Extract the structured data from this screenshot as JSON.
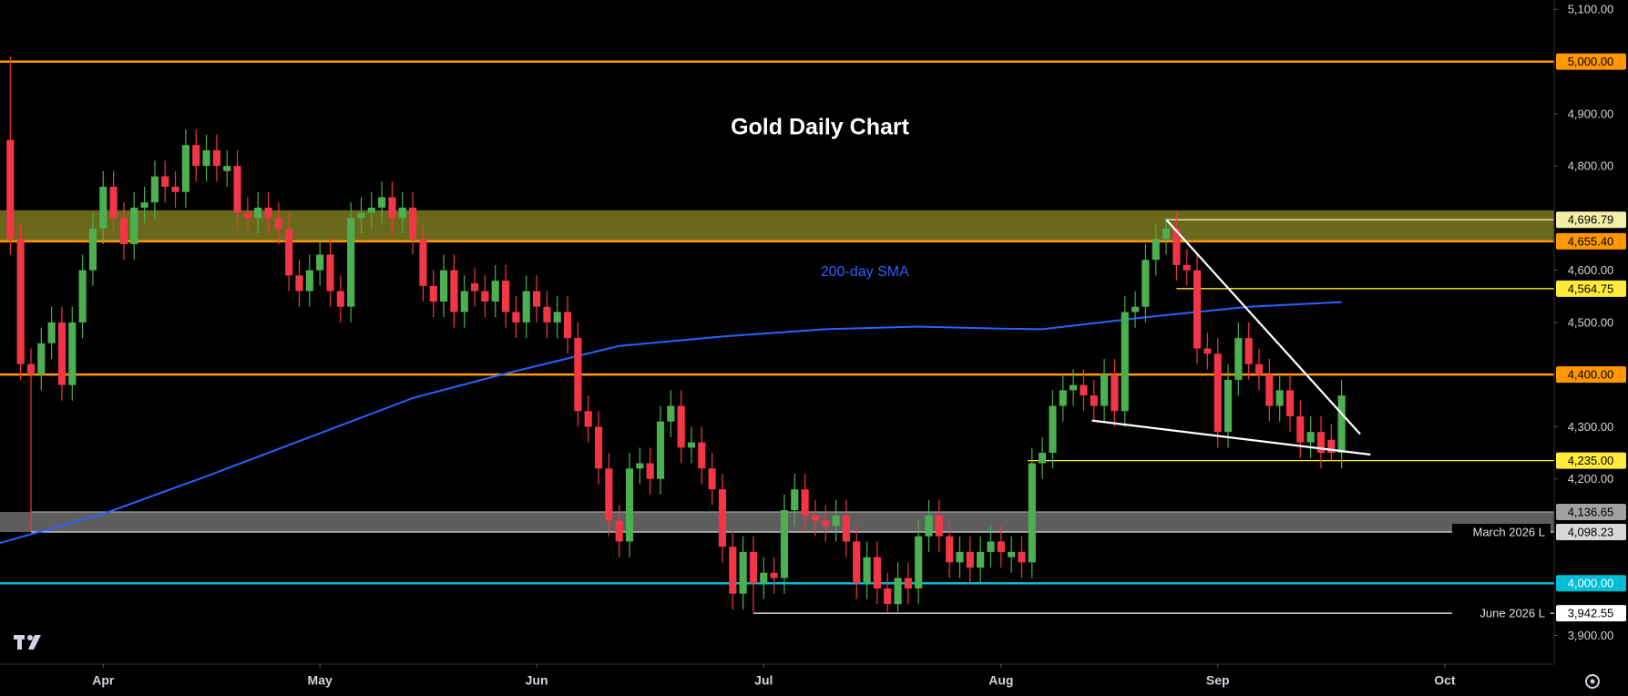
{
  "chart_data": {
    "type": "candlestick",
    "title": "Gold Daily Chart",
    "up_color": "#4caf50",
    "down_color": "#f23645",
    "open": [
      4850,
      4660,
      4420,
      4400,
      4460,
      4500,
      4380,
      4500,
      4600,
      4680,
      4760,
      4700,
      4650,
      4720,
      4730,
      4780,
      4760,
      4750,
      4840,
      4800,
      4830,
      4790,
      4800,
      4710,
      4700,
      4720,
      4700,
      4680,
      4590,
      4560,
      4600,
      4630,
      4560,
      4530,
      4700,
      4710,
      4720,
      4740,
      4700,
      4720,
      4660,
      4570,
      4540,
      4600,
      4520,
      4575,
      4560,
      4540,
      4580,
      4520,
      4500,
      4560,
      4530,
      4500,
      4520,
      4470,
      4330,
      4300,
      4220,
      4120,
      4080,
      4220,
      4230,
      4200,
      4310,
      4340,
      4260,
      4270,
      4220,
      4180,
      4070,
      3980,
      4060,
      4000,
      4020,
      4010,
      4140,
      4180,
      4130,
      4120,
      4110,
      4130,
      4080,
      4000,
      4050,
      3990,
      3960,
      4010,
      3990,
      4090,
      4130,
      4090,
      4040,
      4060,
      4030,
      4060,
      4080,
      4050,
      4060,
      4040,
      4230,
      4250,
      4340,
      4370,
      4380,
      4360,
      4340,
      4400,
      4330,
      4520,
      4530,
      4620,
      4660,
      4680,
      4610,
      4600,
      4450,
      4440,
      4290,
      4390,
      4470,
      4420,
      4400,
      4340,
      4370,
      4320,
      4270,
      4290,
      4275,
      4250
    ],
    "high": [
      5010,
      4690,
      4450,
      4490,
      4530,
      4530,
      4530,
      4630,
      4710,
      4790,
      4790,
      4730,
      4750,
      4760,
      4810,
      4810,
      4790,
      4870,
      4870,
      4860,
      4860,
      4830,
      4830,
      4740,
      4750,
      4750,
      4730,
      4710,
      4620,
      4630,
      4660,
      4660,
      4590,
      4730,
      4740,
      4750,
      4770,
      4770,
      4750,
      4750,
      4690,
      4600,
      4630,
      4630,
      4590,
      4605,
      4590,
      4610,
      4610,
      4550,
      4590,
      4590,
      4560,
      4550,
      4550,
      4500,
      4360,
      4330,
      4250,
      4150,
      4250,
      4260,
      4260,
      4340,
      4370,
      4370,
      4300,
      4300,
      4250,
      4210,
      4100,
      4090,
      4090,
      4050,
      4050,
      4170,
      4210,
      4210,
      4160,
      4150,
      4160,
      4160,
      4110,
      4080,
      4080,
      4020,
      4040,
      4040,
      4120,
      4160,
      4160,
      4120,
      4090,
      4090,
      4090,
      4110,
      4110,
      4090,
      4090,
      4260,
      4280,
      4370,
      4400,
      4410,
      4410,
      4390,
      4430,
      4430,
      4550,
      4560,
      4650,
      4690,
      4700,
      4710,
      4640,
      4630,
      4480,
      4470,
      4420,
      4500,
      4500,
      4450,
      4430,
      4400,
      4400,
      4350,
      4320,
      4320,
      4305,
      4390
    ],
    "low": [
      4630,
      4390,
      4098.23,
      4370,
      4430,
      4350,
      4350,
      4470,
      4570,
      4650,
      4670,
      4620,
      4620,
      4690,
      4700,
      4730,
      4720,
      4720,
      4770,
      4770,
      4770,
      4760,
      4680,
      4670,
      4670,
      4670,
      4650,
      4560,
      4530,
      4530,
      4570,
      4530,
      4500,
      4500,
      4670,
      4680,
      4690,
      4670,
      4670,
      4630,
      4540,
      4510,
      4510,
      4490,
      4490,
      4530,
      4510,
      4510,
      4490,
      4470,
      4470,
      4500,
      4470,
      4470,
      4440,
      4300,
      4270,
      4190,
      4090,
      4050,
      4050,
      4190,
      4170,
      4170,
      4280,
      4230,
      4230,
      4190,
      4150,
      4040,
      3950,
      3950,
      3942.55,
      3970,
      3980,
      3980,
      4110,
      4100,
      4090,
      4080,
      4080,
      4050,
      3970,
      3970,
      3960,
      3945,
      3945,
      3960,
      3960,
      4060,
      4060,
      4010,
      4010,
      4000,
      4000,
      4030,
      4030,
      4020,
      4010,
      4010,
      4200,
      4220,
      4310,
      4340,
      4330,
      4310,
      4310,
      4300,
      4300,
      4490,
      4500,
      4590,
      4630,
      4580,
      4570,
      4420,
      4410,
      4260,
      4260,
      4360,
      4390,
      4370,
      4310,
      4310,
      4290,
      4240,
      4240,
      4220,
      4235,
      4220
    ],
    "close": [
      4660,
      4420,
      4400,
      4460,
      4500,
      4380,
      4500,
      4600,
      4680,
      4760,
      4700,
      4650,
      4720,
      4730,
      4780,
      4760,
      4750,
      4840,
      4800,
      4830,
      4800,
      4800,
      4710,
      4700,
      4720,
      4700,
      4680,
      4590,
      4560,
      4600,
      4630,
      4560,
      4530,
      4700,
      4710,
      4720,
      4740,
      4700,
      4720,
      4660,
      4570,
      4540,
      4600,
      4520,
      4560,
      4560,
      4540,
      4580,
      4520,
      4500,
      4560,
      4530,
      4500,
      4520,
      4470,
      4330,
      4300,
      4220,
      4120,
      4080,
      4220,
      4230,
      4200,
      4310,
      4340,
      4260,
      4270,
      4220,
      4180,
      4070,
      3980,
      4060,
      4000,
      4020,
      4010,
      4140,
      4180,
      4130,
      4120,
      4110,
      4130,
      4080,
      4000,
      4050,
      3990,
      3960,
      4010,
      3990,
      4090,
      4130,
      4090,
      4040,
      4060,
      4030,
      4060,
      4080,
      4060,
      4060,
      4040,
      4230,
      4250,
      4340,
      4370,
      4380,
      4360,
      4340,
      4400,
      4330,
      4520,
      4530,
      4620,
      4660,
      4680,
      4610,
      4600,
      4450,
      4440,
      4290,
      4390,
      4470,
      4420,
      4400,
      4340,
      4370,
      4320,
      4270,
      4290,
      4250,
      4250,
      4360
    ],
    "xlim": [
      -1,
      149.6
    ],
    "xticks": [
      {
        "value": 9,
        "label": "Apr"
      },
      {
        "value": 30,
        "label": "May"
      },
      {
        "value": 51,
        "label": "Jun"
      },
      {
        "value": 73,
        "label": "Jul"
      },
      {
        "value": 96,
        "label": "Aug"
      },
      {
        "value": 117,
        "label": "Sep"
      },
      {
        "value": 139,
        "label": "Oct"
      }
    ],
    "ylim": [
      3845,
      5118
    ],
    "yticks": [
      {
        "value": 3900,
        "label": "3,900.00"
      },
      {
        "value": 4200,
        "label": "4,200.00"
      },
      {
        "value": 4300,
        "label": "4,300.00"
      },
      {
        "value": 4500,
        "label": "4,500.00"
      },
      {
        "value": 4600,
        "label": "4,600.00"
      },
      {
        "value": 4800,
        "label": "4,800.00"
      },
      {
        "value": 4900,
        "label": "4,900.00"
      },
      {
        "value": 5100,
        "label": "5,100.00"
      }
    ],
    "zones": [
      {
        "lower": 4655.4,
        "upper": 4715,
        "color": "#7d7a1e"
      },
      {
        "lower": 4098.23,
        "upper": 4136.65,
        "color": "#6e6e6e"
      }
    ],
    "levels": [
      {
        "value": 5000,
        "label": "5,000.00",
        "color": "#ff9800"
      },
      {
        "value": 4696.79,
        "label": "4,696.79",
        "color": "#f4efa8",
        "start": 112
      },
      {
        "value": 4655.4,
        "label": "4,655.40",
        "color": "#ff9800"
      },
      {
        "value": 4564.75,
        "label": "4,564.75",
        "color": "#ffeb3b",
        "start": 113
      },
      {
        "value": 4400,
        "label": "4,400.00",
        "color": "#ff9800"
      },
      {
        "value": 4235,
        "label": "4,235.00",
        "color": "#ffeb3b",
        "start": 98.6
      },
      {
        "value": 4136.65,
        "label": "4,136.65",
        "color": "#a0a0a0",
        "start": 2
      },
      {
        "value": 4098.23,
        "label": "4,098.23",
        "color": "#d8d8d8",
        "start": 2,
        "note": "March 2026 L"
      },
      {
        "value": 4000,
        "label": "4,000.00",
        "color": "#00bcd4"
      },
      {
        "value": 3942.55,
        "label": "3,942.55",
        "color": "#ffffff",
        "start": 72,
        "note": "June 2026 L"
      }
    ],
    "trendlines": [
      {
        "x": [
          112,
          130.8
        ],
        "values": [
          4697,
          4286
        ],
        "color": "#ffffff"
      },
      {
        "x": [
          104.8,
          131.8
        ],
        "values": [
          4312,
          4246.6
        ],
        "color": "#ffffff"
      }
    ],
    "sma": {
      "name": "200-day SMA",
      "color": "#2962ff",
      "label_x": 82.8,
      "label_y": 4596,
      "x": [
        -1,
        9,
        19,
        29,
        39,
        48,
        59,
        69,
        79,
        88,
        96,
        100,
        110,
        120,
        129
      ],
      "values": [
        4077,
        4133,
        4205,
        4280,
        4355,
        4402,
        4455,
        4473,
        4487,
        4492,
        4488,
        4487,
        4510,
        4530,
        4539
      ]
    }
  }
}
